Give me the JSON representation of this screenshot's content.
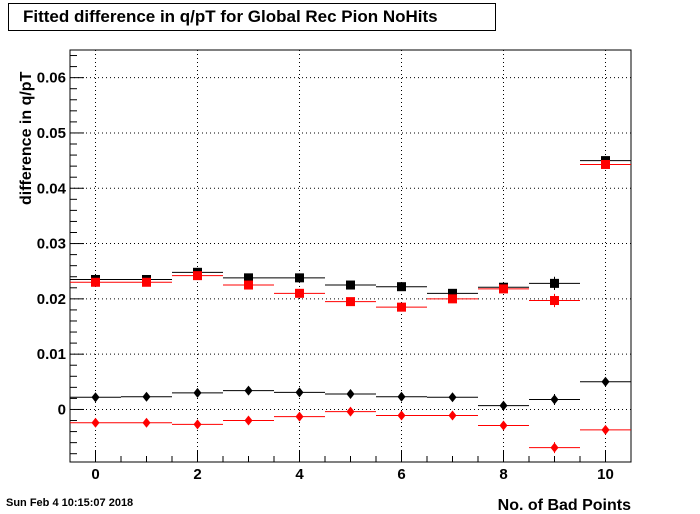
{
  "chart_data": {
    "type": "scatter",
    "title": "Fitted difference in q/pT  for Global Rec Pion NoHits",
    "xlabel": "No. of Bad Points",
    "ylabel": "difference in q/pT",
    "xlim": [
      -0.5,
      10.5
    ],
    "ylim": [
      -0.0095,
      0.065
    ],
    "grid": true,
    "x_ticks": [
      0,
      2,
      4,
      6,
      8,
      10
    ],
    "x_tick_labels": [
      "0",
      "2",
      "4",
      "6",
      "8",
      "10"
    ],
    "y_ticks": [
      0,
      0.01,
      0.02,
      0.03,
      0.04,
      0.05,
      0.06
    ],
    "y_tick_labels": [
      "0",
      "0.01",
      "0.02",
      "0.03",
      "0.04",
      "0.05",
      "0.06"
    ],
    "x": [
      0,
      1,
      2,
      3,
      4,
      5,
      6,
      7,
      8,
      9,
      10
    ],
    "series": [
      {
        "marker": "square",
        "color": "#000000",
        "values": [
          0.0235,
          0.0235,
          0.0248,
          0.0238,
          0.0238,
          0.0225,
          0.0222,
          0.021,
          0.0221,
          0.0228,
          0.045
        ],
        "errors": [
          0.0004,
          0.0004,
          0.0004,
          0.0004,
          0.0004,
          0.0004,
          0.0005,
          0.0006,
          0.0007,
          0.0012,
          0.0007
        ]
      },
      {
        "marker": "square",
        "color": "#ff0000",
        "values": [
          0.023,
          0.023,
          0.0242,
          0.0225,
          0.021,
          0.0195,
          0.0185,
          0.02,
          0.0218,
          0.0197,
          0.0443
        ],
        "errors": [
          0.0004,
          0.0004,
          0.0004,
          0.0004,
          0.0004,
          0.0004,
          0.0005,
          0.0006,
          0.0007,
          0.0012,
          0.0007
        ]
      },
      {
        "marker": "diamond",
        "color": "#000000",
        "values": [
          0.0022,
          0.0023,
          0.003,
          0.0034,
          0.0031,
          0.0028,
          0.0023,
          0.0022,
          0.0007,
          0.0018,
          0.005
        ],
        "errors": [
          0.0003,
          0.0003,
          0.0003,
          0.0003,
          0.0003,
          0.0003,
          0.0004,
          0.0005,
          0.0006,
          0.001,
          0.0006
        ]
      },
      {
        "marker": "diamond",
        "color": "#ff0000",
        "values": [
          -0.0024,
          -0.0024,
          -0.0027,
          -0.002,
          -0.0013,
          -0.0004,
          -0.0011,
          -0.0011,
          -0.0029,
          -0.0069,
          -0.0037
        ],
        "errors": [
          0.0003,
          0.0003,
          0.0003,
          0.0003,
          0.0003,
          0.0003,
          0.0004,
          0.0005,
          0.0006,
          0.001,
          0.0006
        ]
      }
    ]
  },
  "footer": {
    "timestamp": "Sun Feb  4 10:15:07 2018"
  }
}
